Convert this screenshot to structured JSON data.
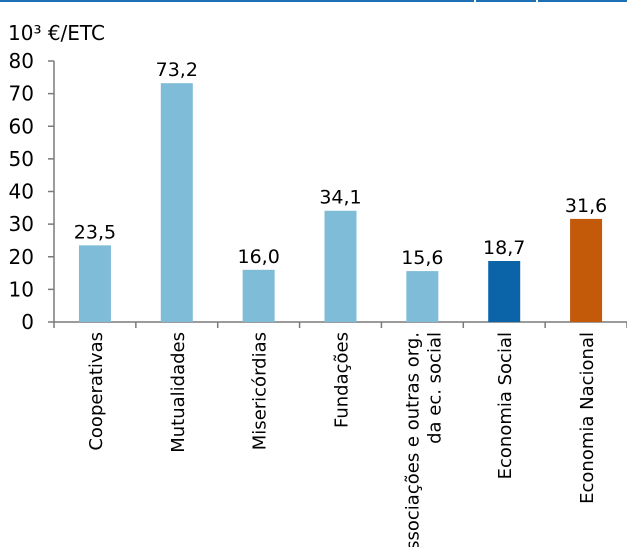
{
  "chart_data": {
    "type": "bar",
    "unit_label": "10³ €/ETC",
    "categories": [
      [
        "Cooperativas"
      ],
      [
        "Mutualidades"
      ],
      [
        "Misericórdias"
      ],
      [
        "Fundações"
      ],
      [
        "Associações e outras org.",
        "da ec. social"
      ],
      [
        "Economia Social"
      ],
      [
        "Economia Nacional"
      ]
    ],
    "values": [
      23.5,
      73.2,
      16.0,
      34.1,
      15.6,
      18.7,
      31.6
    ],
    "value_labels": [
      "23,5",
      "73,2",
      "16,0",
      "34,1",
      "15,6",
      "18,7",
      "31,6"
    ],
    "bar_colors": [
      "#7fbcd8",
      "#7fbcd8",
      "#7fbcd8",
      "#7fbcd8",
      "#7fbcd8",
      "#0b63a8",
      "#c25a0a"
    ],
    "ylim": [
      0,
      80
    ],
    "yticks": [
      0,
      10,
      20,
      30,
      40,
      50,
      60,
      70,
      80
    ],
    "grid": false,
    "legend": "none"
  }
}
